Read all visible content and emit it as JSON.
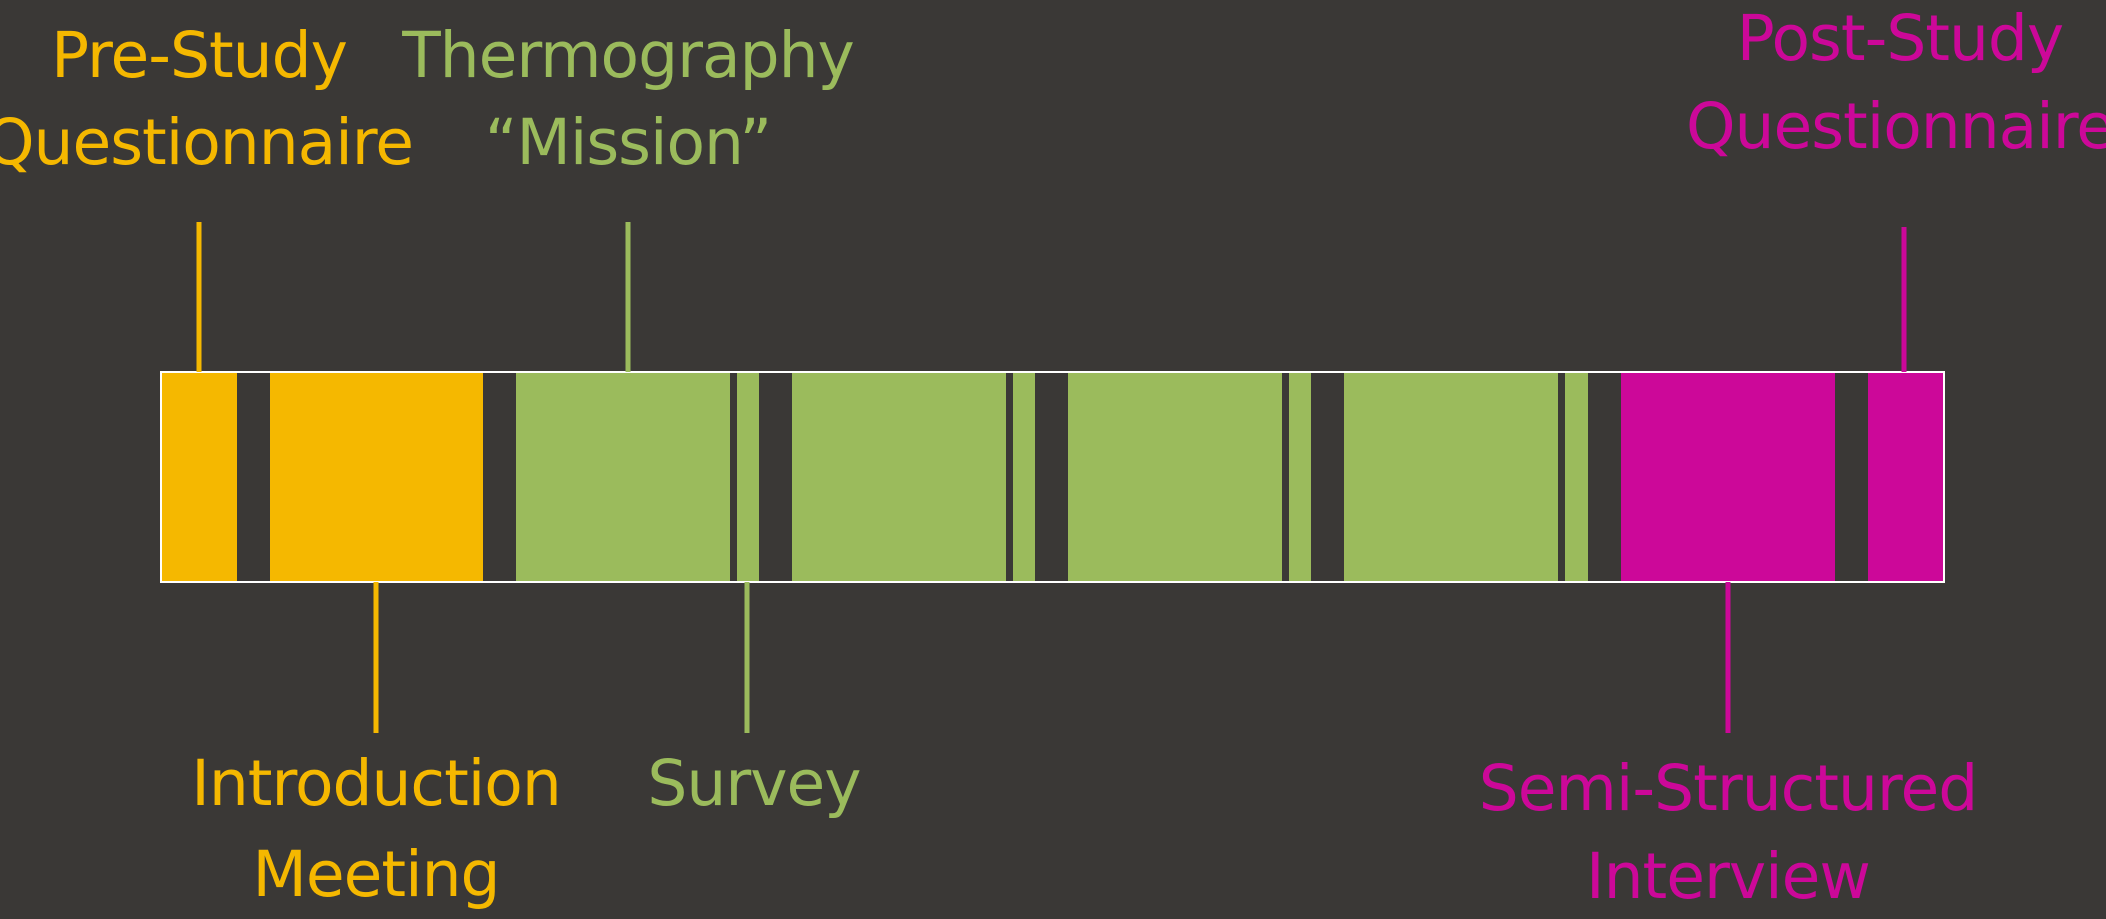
{
  "colors": {
    "background": "#3a3836",
    "study_phase_pre": "#f5b800",
    "study_phase_main": "#9bbb5c",
    "study_phase_post": "#cc0899",
    "outline": "#ffffff"
  },
  "labels": {
    "pre_study_questionnaire": [
      "Pre-Study",
      "Questionnaire"
    ],
    "thermography_mission": [
      "Thermography",
      "“Mission”"
    ],
    "post_study_questionnaire": [
      "Post-Study",
      "Questionnaire"
    ],
    "introduction_meeting": [
      "Introduction",
      "Meeting"
    ],
    "survey": [
      "Survey"
    ],
    "semi_structured_interview": [
      "Semi-Structured",
      "Interview"
    ]
  }
}
